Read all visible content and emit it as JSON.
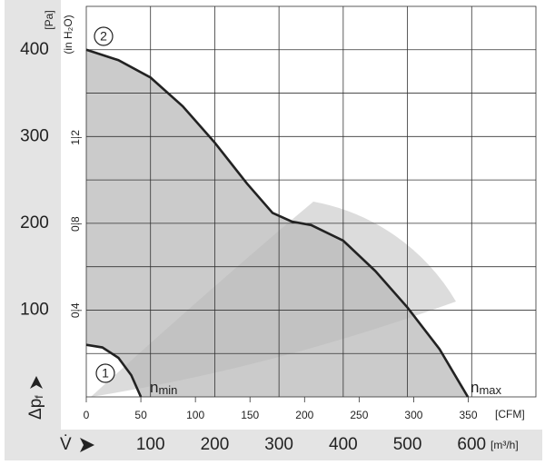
{
  "chart_data": {
    "type": "line",
    "x_label": "V̇",
    "x_unit": "[m³/h]",
    "x2_unit": "[CFM]",
    "y_label": {
      "base": "Δp",
      "sub": "f"
    },
    "y_unit": "[Pa]",
    "y2_unit": "(in H₂O)",
    "xlim": [
      0,
      700
    ],
    "xticks": [
      100,
      200,
      300,
      400,
      500,
      600
    ],
    "x2lim": [
      0,
      412
    ],
    "x2ticks": [
      0,
      50,
      100,
      150,
      200,
      250,
      300,
      350
    ],
    "ylim": [
      0,
      450
    ],
    "yticks": [
      100,
      200,
      300,
      400
    ],
    "y_minor_ticks": [
      50,
      150,
      250,
      350
    ],
    "y2lim": [
      0,
      1.807
    ],
    "y2ticks": [
      0.4,
      0.8,
      1.2
    ],
    "grid": true,
    "series": [
      {
        "marker": "2",
        "label": {
          "base": "n",
          "sub": "max"
        },
        "color": "#222222",
        "x": [
          0,
          50,
          100,
          150,
          200,
          250,
          290,
          320,
          350,
          400,
          450,
          500,
          550,
          594
        ],
        "values": [
          400,
          388,
          368,
          335,
          293,
          246,
          212,
          202,
          198,
          180,
          145,
          103,
          55,
          0
        ]
      },
      {
        "marker": "1",
        "label": {
          "base": "n",
          "sub": "min"
        },
        "color": "#222222",
        "x": [
          0,
          25,
          50,
          70,
          85
        ],
        "values": [
          60,
          57,
          45,
          25,
          0
        ]
      }
    ]
  }
}
